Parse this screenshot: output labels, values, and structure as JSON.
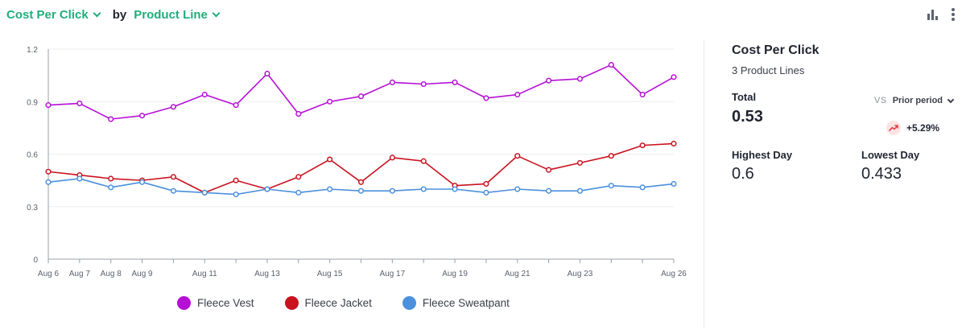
{
  "header": {
    "metric": "Cost Per Click",
    "by": "by",
    "group": "Product Line"
  },
  "toolbar": {
    "chart_icon": "bar-chart-icon",
    "menu_icon": "more-vertical-icon"
  },
  "panel": {
    "title": "Cost Per Click",
    "subtitle": "3 Product Lines",
    "total_label": "Total",
    "total_value": "0.53",
    "vs_label": "VS",
    "comparison": "Prior period",
    "change": "+5.29%",
    "change_icon": "trending-up-icon",
    "highest_label": "Highest Day",
    "highest_value": "0.6",
    "lowest_label": "Lowest Day",
    "lowest_value": "0.433"
  },
  "chart_data": {
    "type": "line",
    "x": [
      "Aug 6",
      "Aug 7",
      "Aug 8",
      "Aug 9",
      "Aug 10",
      "Aug 11",
      "Aug 12",
      "Aug 13",
      "Aug 14",
      "Aug 15",
      "Aug 16",
      "Aug 17",
      "Aug 18",
      "Aug 19",
      "Aug 20",
      "Aug 21",
      "Aug 22",
      "Aug 23",
      "Aug 24",
      "Aug 25",
      "Aug 26"
    ],
    "x_tick_labels": [
      "Aug 6",
      "Aug 7",
      "Aug 8",
      "Aug 9",
      "Aug 11",
      "Aug 13",
      "Aug 15",
      "Aug 17",
      "Aug 19",
      "Aug 21",
      "Aug 23",
      "Aug 26"
    ],
    "ylim": [
      0,
      1.2
    ],
    "yticks": [
      "0",
      "0.3",
      "0.6",
      "0.9",
      "1.2"
    ],
    "grid": true,
    "legend_position": "bottom",
    "series": [
      {
        "name": "Fleece Vest",
        "color": "#b60fd6",
        "values": [
          0.88,
          0.89,
          0.8,
          0.82,
          0.87,
          0.94,
          0.88,
          1.06,
          0.83,
          0.9,
          0.93,
          1.01,
          1.0,
          1.01,
          0.92,
          0.94,
          1.02,
          1.03,
          1.11,
          0.94,
          1.04
        ]
      },
      {
        "name": "Fleece Jacket",
        "color": "#c8121e",
        "values": [
          0.5,
          0.48,
          0.46,
          0.45,
          0.47,
          0.38,
          0.45,
          0.4,
          0.47,
          0.57,
          0.44,
          0.58,
          0.56,
          0.42,
          0.43,
          0.59,
          0.51,
          0.55,
          0.59,
          0.65,
          0.66
        ]
      },
      {
        "name": "Fleece Sweatpant",
        "color": "#4a90dc",
        "values": [
          0.44,
          0.46,
          0.41,
          0.44,
          0.39,
          0.38,
          0.37,
          0.4,
          0.38,
          0.4,
          0.39,
          0.39,
          0.4,
          0.4,
          0.38,
          0.4,
          0.39,
          0.39,
          0.42,
          0.41,
          0.43
        ]
      }
    ]
  }
}
